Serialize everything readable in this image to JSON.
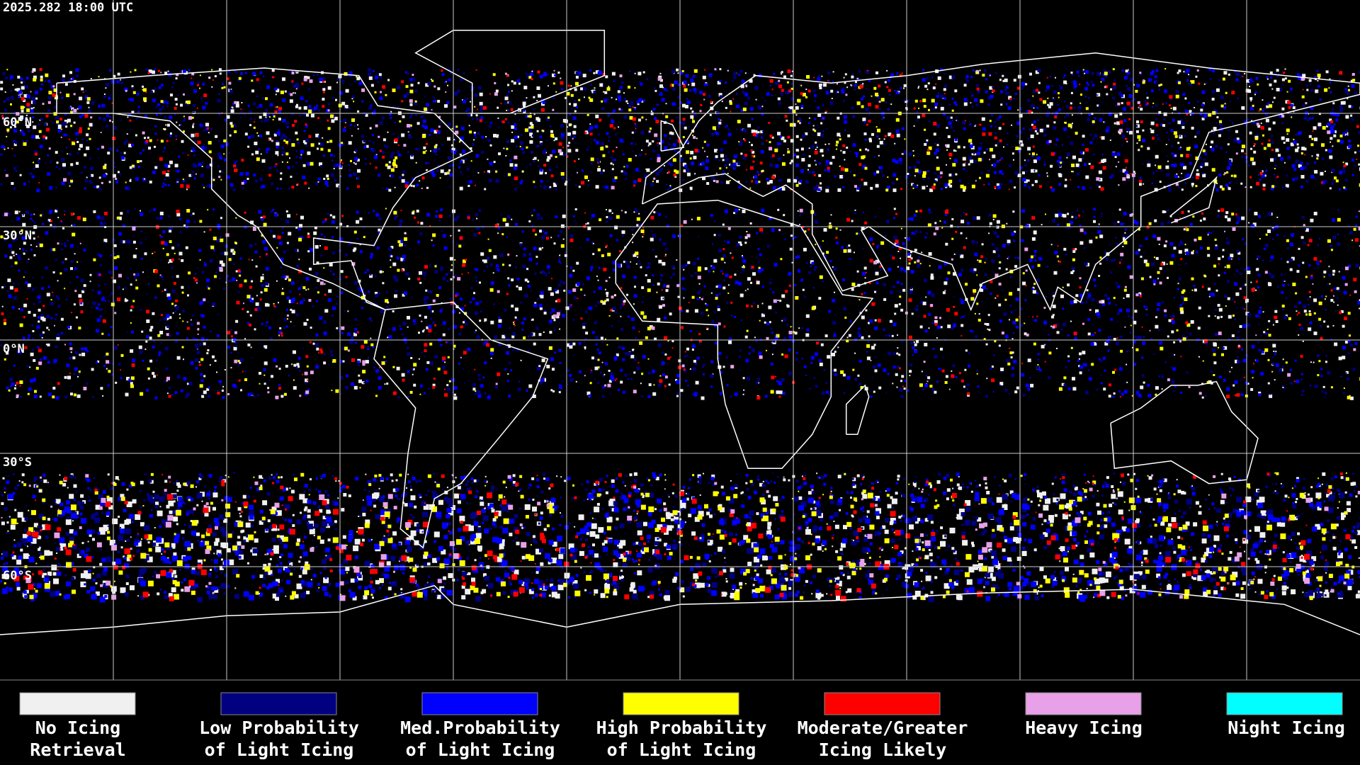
{
  "timestamp": "2025.282 18:00 UTC",
  "lat_labels": [
    "60°N",
    "30°N",
    "0°N",
    "30°S",
    "60°S"
  ],
  "legend": [
    {
      "lines": [
        "No Icing",
        "Retrieval"
      ],
      "color": "#f0f0f0"
    },
    {
      "lines": [
        "Low Probability",
        "of Light Icing"
      ],
      "color": "#000080"
    },
    {
      "lines": [
        "Med.Probability",
        "of Light Icing"
      ],
      "color": "#0000ff"
    },
    {
      "lines": [
        "High Probability",
        "of Light Icing"
      ],
      "color": "#ffff00"
    },
    {
      "lines": [
        "Moderate/Greater",
        "Icing Likely"
      ],
      "color": "#ff0000"
    },
    {
      "lines": [
        "Heavy Icing"
      ],
      "color": "#e8a0e8"
    },
    {
      "lines": [
        "Night Icing"
      ],
      "color": "#00ffff"
    }
  ]
}
